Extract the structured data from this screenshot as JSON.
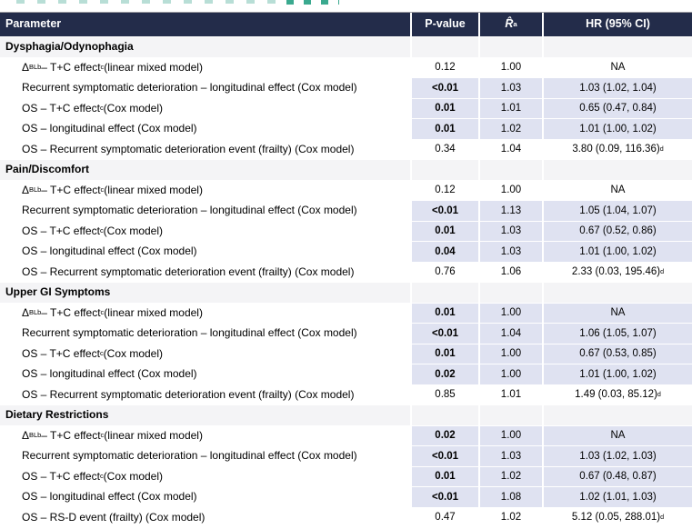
{
  "colors": {
    "header_bg": "#232c4a",
    "header_text": "#ffffff",
    "highlight": "#dfe2f1",
    "section_bg": "#f4f4f6",
    "remnant_teal_light": "#b8ded6",
    "remnant_teal_dark": "#3aa98f"
  },
  "table": {
    "columns": [
      {
        "key": "parameter",
        "label": "Parameter"
      },
      {
        "key": "p_value",
        "label": "P-value"
      },
      {
        "key": "r_hat",
        "label_segments": [
          {
            "t": "R̂",
            "s": "i"
          },
          {
            "t": "a",
            "s": "sup"
          }
        ]
      },
      {
        "key": "hr",
        "label": "HR (95% CI)"
      }
    ],
    "sections": [
      {
        "title": "Dysphagia/Odynophagia",
        "rows": [
          {
            "param_segments": [
              {
                "t": "Δ"
              },
              {
                "t": "BL",
                "s": "sub"
              },
              {
                "t": "b",
                "s": "sup"
              },
              {
                "t": " – T+C effect"
              },
              {
                "t": "c",
                "s": "sup"
              },
              {
                "t": " (linear mixed model)"
              }
            ],
            "p": "0.12",
            "p_bold": false,
            "r": "1.00",
            "hr": "NA",
            "hr_sup": "",
            "highlight": false
          },
          {
            "param_segments": [
              {
                "t": "Recurrent symptomatic deterioration – longitudinal effect (Cox model)"
              }
            ],
            "p": "<0.01",
            "p_bold": true,
            "r": "1.03",
            "hr": "1.03 (1.02, 1.04)",
            "hr_sup": "",
            "highlight": true
          },
          {
            "param_segments": [
              {
                "t": "OS – T+C effect"
              },
              {
                "t": "c",
                "s": "sup"
              },
              {
                "t": " (Cox model)"
              }
            ],
            "p": "0.01",
            "p_bold": true,
            "r": "1.01",
            "hr": "0.65 (0.47, 0.84)",
            "hr_sup": "",
            "highlight": true
          },
          {
            "param_segments": [
              {
                "t": "OS – longitudinal effect (Cox model)"
              }
            ],
            "p": "0.01",
            "p_bold": true,
            "r": "1.02",
            "hr": "1.01 (1.00, 1.02)",
            "hr_sup": "",
            "highlight": true
          },
          {
            "param_segments": [
              {
                "t": "OS – Recurrent symptomatic deterioration event (frailty) (Cox model)"
              }
            ],
            "p": "0.34",
            "p_bold": false,
            "r": "1.04",
            "hr": "3.80 (0.09, 116.36)",
            "hr_sup": "d",
            "highlight": false
          }
        ]
      },
      {
        "title": "Pain/Discomfort",
        "rows": [
          {
            "param_segments": [
              {
                "t": "Δ"
              },
              {
                "t": "BL",
                "s": "sub"
              },
              {
                "t": "b",
                "s": "sup"
              },
              {
                "t": " – T+C effect"
              },
              {
                "t": "c",
                "s": "sup"
              },
              {
                "t": " (linear mixed model)"
              }
            ],
            "p": "0.12",
            "p_bold": false,
            "r": "1.00",
            "hr": "NA",
            "hr_sup": "",
            "highlight": false
          },
          {
            "param_segments": [
              {
                "t": "Recurrent symptomatic deterioration – longitudinal effect (Cox model)"
              }
            ],
            "p": "<0.01",
            "p_bold": true,
            "r": "1.13",
            "hr": "1.05 (1.04, 1.07)",
            "hr_sup": "",
            "highlight": true
          },
          {
            "param_segments": [
              {
                "t": "OS – T+C effect"
              },
              {
                "t": "c",
                "s": "sup"
              },
              {
                "t": " (Cox model)"
              }
            ],
            "p": "0.01",
            "p_bold": true,
            "r": "1.03",
            "hr": "0.67 (0.52, 0.86)",
            "hr_sup": "",
            "highlight": true
          },
          {
            "param_segments": [
              {
                "t": "OS – longitudinal effect (Cox model)"
              }
            ],
            "p": "0.04",
            "p_bold": true,
            "r": "1.03",
            "hr": "1.01 (1.00, 1.02)",
            "hr_sup": "",
            "highlight": true
          },
          {
            "param_segments": [
              {
                "t": "OS – Recurrent symptomatic deterioration event (frailty) (Cox model)"
              }
            ],
            "p": "0.76",
            "p_bold": false,
            "r": "1.06",
            "hr": "2.33 (0.03, 195.46)",
            "hr_sup": "d",
            "highlight": false
          }
        ]
      },
      {
        "title": "Upper GI Symptoms",
        "rows": [
          {
            "param_segments": [
              {
                "t": "Δ"
              },
              {
                "t": "BL",
                "s": "sub"
              },
              {
                "t": "b",
                "s": "sup"
              },
              {
                "t": " – T+C effect"
              },
              {
                "t": "c",
                "s": "sup"
              },
              {
                "t": " (linear mixed model)"
              }
            ],
            "p": "0.01",
            "p_bold": true,
            "r": "1.00",
            "hr": "NA",
            "hr_sup": "",
            "highlight": true
          },
          {
            "param_segments": [
              {
                "t": "Recurrent symptomatic deterioration – longitudinal effect (Cox model)"
              }
            ],
            "p": "<0.01",
            "p_bold": true,
            "r": "1.04",
            "hr": "1.06 (1.05, 1.07)",
            "hr_sup": "",
            "highlight": true
          },
          {
            "param_segments": [
              {
                "t": "OS – T+C effect"
              },
              {
                "t": "c",
                "s": "sup"
              },
              {
                "t": " (Cox model)"
              }
            ],
            "p": "0.01",
            "p_bold": true,
            "r": "1.00",
            "hr": "0.67 (0.53, 0.85)",
            "hr_sup": "",
            "highlight": true
          },
          {
            "param_segments": [
              {
                "t": "OS – longitudinal effect (Cox model)"
              }
            ],
            "p": "0.02",
            "p_bold": true,
            "r": "1.00",
            "hr": "1.01 (1.00, 1.02)",
            "hr_sup": "",
            "highlight": true
          },
          {
            "param_segments": [
              {
                "t": "OS – Recurrent symptomatic deterioration event (frailty) (Cox model)"
              }
            ],
            "p": "0.85",
            "p_bold": false,
            "r": "1.01",
            "hr": "1.49 (0.03, 85.12)",
            "hr_sup": "d",
            "highlight": false
          }
        ]
      },
      {
        "title": "Dietary Restrictions",
        "rows": [
          {
            "param_segments": [
              {
                "t": "Δ"
              },
              {
                "t": "BL",
                "s": "sub"
              },
              {
                "t": "b",
                "s": "sup"
              },
              {
                "t": " – T+C effect"
              },
              {
                "t": "c",
                "s": "sup"
              },
              {
                "t": " (linear mixed model)"
              }
            ],
            "p": "0.02",
            "p_bold": true,
            "r": "1.00",
            "hr": "NA",
            "hr_sup": "",
            "highlight": true
          },
          {
            "param_segments": [
              {
                "t": "Recurrent symptomatic deterioration – longitudinal effect (Cox model)"
              }
            ],
            "p": "<0.01",
            "p_bold": true,
            "r": "1.03",
            "hr": "1.03 (1.02, 1.03)",
            "hr_sup": "",
            "highlight": true
          },
          {
            "param_segments": [
              {
                "t": "OS – T+C effect"
              },
              {
                "t": "c",
                "s": "sup"
              },
              {
                "t": " (Cox model)"
              }
            ],
            "p": "0.01",
            "p_bold": true,
            "r": "1.02",
            "hr": "0.67 (0.48, 0.87)",
            "hr_sup": "",
            "highlight": true
          },
          {
            "param_segments": [
              {
                "t": "OS – longitudinal effect (Cox model)"
              }
            ],
            "p": "<0.01",
            "p_bold": true,
            "r": "1.08",
            "hr": "1.02 (1.01, 1.03)",
            "hr_sup": "",
            "highlight": true
          },
          {
            "param_segments": [
              {
                "t": "OS – RS-D event (frailty) (Cox model)"
              }
            ],
            "p": "0.47",
            "p_bold": false,
            "r": "1.02",
            "hr": "5.12 (0.05, 288.01)",
            "hr_sup": "d",
            "highlight": false
          }
        ]
      }
    ]
  }
}
